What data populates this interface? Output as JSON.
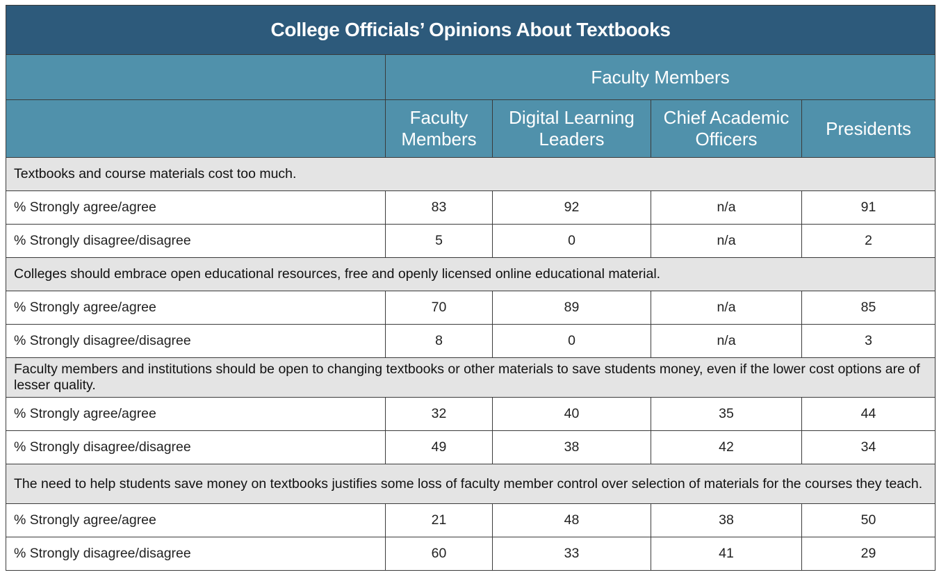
{
  "chart_data": {
    "type": "table",
    "title": "College Officials’ Opinions About Textbooks",
    "group_header": "Faculty Members",
    "columns": [
      "Faculty Members",
      "Digital Learning Leaders",
      "Chief Academic Officers",
      "Presidents"
    ],
    "sections": [
      {
        "statement": "Textbooks and course materials cost too much.",
        "rows": [
          {
            "label": "% Strongly agree/agree",
            "values": [
              "83",
              "92",
              "n/a",
              "91"
            ]
          },
          {
            "label": "% Strongly disagree/disagree",
            "values": [
              "5",
              "0",
              "n/a",
              "2"
            ]
          }
        ]
      },
      {
        "statement": "Colleges should embrace open educational resources, free and openly licensed online educational material.",
        "rows": [
          {
            "label": "% Strongly agree/agree",
            "values": [
              "70",
              "89",
              "n/a",
              "85"
            ]
          },
          {
            "label": "% Strongly disagree/disagree",
            "values": [
              "8",
              "0",
              "n/a",
              "3"
            ]
          }
        ]
      },
      {
        "statement": "Faculty members and institutions should be open to changing textbooks or other materials to save students money, even if the lower cost options are of lesser quality.",
        "rows": [
          {
            "label": "% Strongly agree/agree",
            "values": [
              "32",
              "40",
              "35",
              "44"
            ]
          },
          {
            "label": "% Strongly disagree/disagree",
            "values": [
              "49",
              "38",
              "42",
              "34"
            ]
          }
        ]
      },
      {
        "statement": "The need to help students save money on textbooks justifies some loss of faculty member control over selection of materials for the courses they teach.",
        "rows": [
          {
            "label": "% Strongly agree/agree",
            "values": [
              "21",
              "48",
              "38",
              "50"
            ]
          },
          {
            "label": "% Strongly disagree/disagree",
            "values": [
              "60",
              "33",
              "41",
              "29"
            ]
          }
        ]
      }
    ]
  }
}
